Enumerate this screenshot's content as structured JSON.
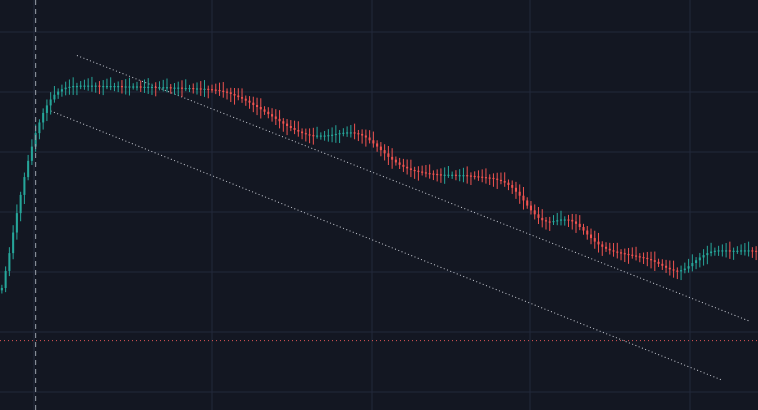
{
  "chart_data": {
    "type": "candlestick",
    "title": "",
    "xlabel": "",
    "ylabel": "",
    "ylim": [
      0,
      100
    ],
    "grid": true,
    "legend": "none",
    "up_color": "#26a69a",
    "down_color": "#ef5350",
    "background": "#131722",
    "grid_color": "#22293a",
    "trendline_color": "#c9ccd4",
    "crosshair_color": "#9aa0ab",
    "price_line_color": "#e05757",
    "price_line_value": 16,
    "crosshair_index": 9,
    "channel": {
      "upper": {
        "start": [
          20,
          88
        ],
        "end": [
          199,
          21
        ]
      },
      "lower": {
        "start": [
          13,
          74
        ],
        "end": [
          192,
          6
        ]
      }
    },
    "close": [
      29.3,
      33.6,
      38.1,
      43.3,
      48.2,
      52.8,
      57.3,
      61.4,
      65.0,
      68.4,
      71.1,
      73.5,
      75.4,
      76.9,
      78.1,
      78.9,
      79.5,
      79.9,
      80.1,
      80.3,
      80.3,
      80.4,
      80.4,
      80.4,
      80.4,
      80.4,
      80.3,
      80.3,
      80.3,
      80.3,
      80.3,
      80.3,
      80.2,
      80.2,
      80.2,
      80.2,
      80.2,
      80.1,
      80.1,
      80.1,
      80.1,
      80.0,
      80.0,
      80.0,
      80.0,
      79.9,
      79.9,
      79.9,
      79.8,
      79.8,
      79.8,
      79.7,
      79.7,
      79.6,
      79.6,
      79.5,
      79.4,
      79.3,
      79.1,
      78.9,
      78.7,
      78.3,
      77.9,
      77.5,
      77.1,
      76.6,
      76.1,
      75.5,
      75.0,
      74.4,
      73.8,
      73.2,
      72.6,
      72.0,
      71.4,
      70.8,
      70.2,
      69.7,
      69.2,
      68.8,
      68.4,
      68.1,
      67.9,
      67.8,
      67.8,
      67.8,
      67.8,
      67.9,
      68.0,
      68.2,
      68.4,
      68.5,
      68.6,
      68.6,
      68.4,
      68.2,
      67.8,
      67.3,
      66.6,
      65.8,
      65.0,
      64.1,
      63.3,
      62.4,
      61.7,
      61.0,
      60.4,
      59.9,
      59.5,
      59.1,
      58.9,
      58.7,
      58.5,
      58.3,
      58.2,
      58.1,
      58.0,
      57.9,
      57.9,
      57.9,
      57.9,
      57.8,
      57.8,
      57.8,
      57.7,
      57.6,
      57.5,
      57.4,
      57.3,
      57.2,
      57.1,
      56.9,
      56.6,
      56.3,
      55.9,
      55.3,
      54.6,
      53.6,
      52.6,
      51.4,
      50.1,
      48.9,
      47.9,
      47.0,
      46.4,
      46.1,
      46.0,
      46.2,
      46.4,
      46.6,
      46.6,
      46.5,
      46.1,
      45.5,
      44.7,
      43.8,
      42.8,
      41.9,
      41.0,
      40.3,
      39.7,
      39.2,
      38.8,
      38.5,
      38.3,
      38.1,
      37.9,
      37.7,
      37.5,
      37.3,
      37.1,
      36.9,
      36.6,
      36.3,
      35.9,
      35.4,
      34.9,
      34.4,
      34.0,
      33.7,
      33.6,
      33.8,
      34.2,
      34.8,
      35.6,
      36.3,
      37.0,
      37.6,
      38.1,
      38.5,
      38.7,
      38.8,
      38.8,
      38.8,
      38.7,
      38.7,
      38.7,
      38.8,
      38.8,
      38.8,
      38.7,
      38.4
    ]
  }
}
